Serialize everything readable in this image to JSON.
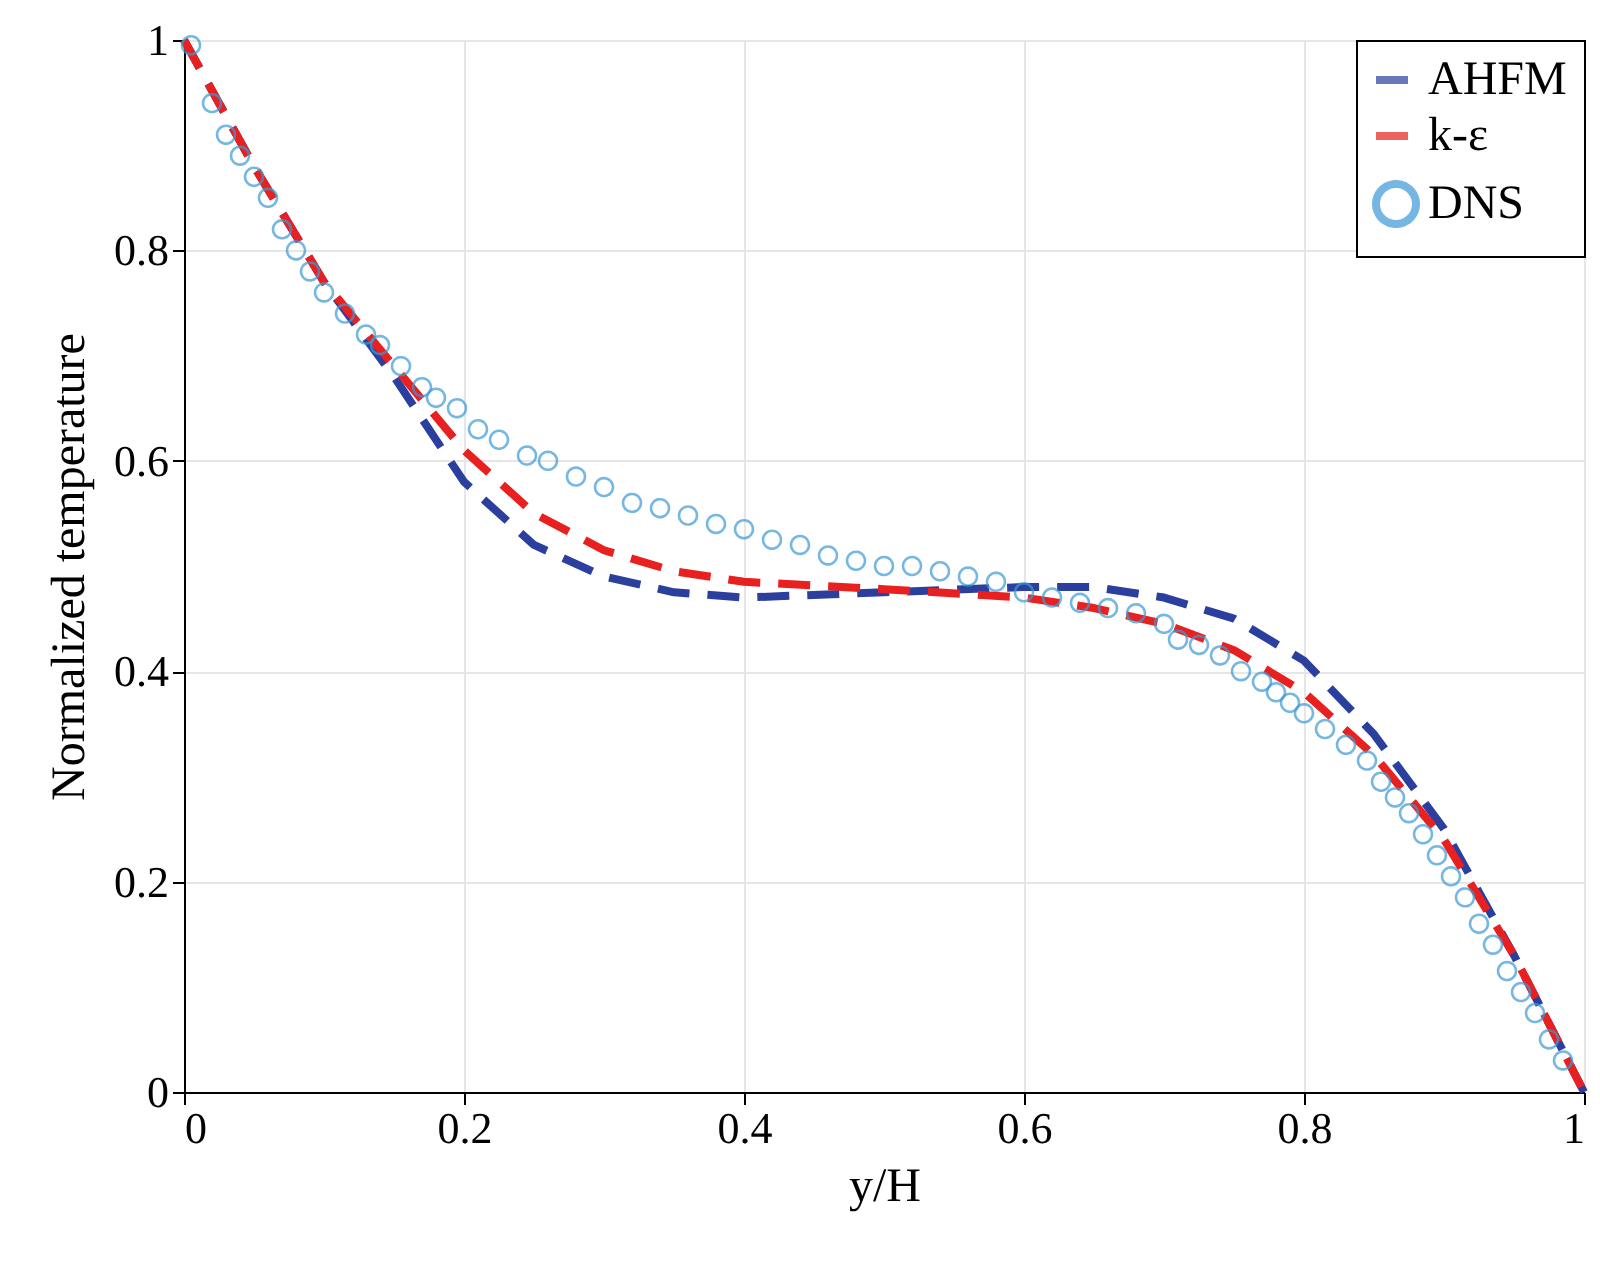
{
  "chart_data": {
    "type": "line",
    "xlabel": "y/H",
    "ylabel": "Normalized temperature",
    "xlim": [
      0,
      1
    ],
    "ylim": [
      0,
      1
    ],
    "xticks": [
      0,
      0.2,
      0.4,
      0.6,
      0.8,
      1
    ],
    "yticks": [
      0,
      0.2,
      0.4,
      0.6,
      0.8,
      1
    ],
    "grid": true,
    "legend": "top right",
    "series": [
      {
        "name": "AHFM",
        "type": "line",
        "line_style": "dashed",
        "marker": "none",
        "color": "#2b3f9e",
        "x": [
          0,
          0.05,
          0.1,
          0.15,
          0.2,
          0.25,
          0.3,
          0.35,
          0.4,
          0.5,
          0.6,
          0.65,
          0.7,
          0.75,
          0.8,
          0.85,
          0.9,
          0.95,
          1
        ],
        "values": [
          1,
          0.88,
          0.77,
          0.68,
          0.58,
          0.52,
          0.49,
          0.475,
          0.47,
          0.475,
          0.48,
          0.48,
          0.47,
          0.45,
          0.41,
          0.34,
          0.25,
          0.13,
          0
        ]
      },
      {
        "name": "k-ε",
        "type": "line",
        "line_style": "dashed",
        "marker": "none",
        "color": "#e8201f",
        "x": [
          0,
          0.05,
          0.1,
          0.15,
          0.2,
          0.25,
          0.3,
          0.35,
          0.4,
          0.5,
          0.6,
          0.65,
          0.7,
          0.75,
          0.8,
          0.85,
          0.9,
          0.95,
          1
        ],
        "values": [
          1,
          0.88,
          0.77,
          0.69,
          0.61,
          0.55,
          0.515,
          0.495,
          0.485,
          0.478,
          0.47,
          0.46,
          0.445,
          0.42,
          0.38,
          0.32,
          0.24,
          0.13,
          0
        ]
      },
      {
        "name": "DNS",
        "type": "scatter",
        "marker": "circle",
        "color": "#3c9ad6",
        "x": [
          0.005,
          0.02,
          0.03,
          0.04,
          0.05,
          0.06,
          0.07,
          0.08,
          0.09,
          0.1,
          0.115,
          0.13,
          0.14,
          0.155,
          0.17,
          0.18,
          0.195,
          0.21,
          0.225,
          0.245,
          0.26,
          0.28,
          0.3,
          0.32,
          0.34,
          0.36,
          0.38,
          0.4,
          0.42,
          0.44,
          0.46,
          0.48,
          0.5,
          0.52,
          0.54,
          0.56,
          0.58,
          0.6,
          0.62,
          0.64,
          0.66,
          0.68,
          0.7,
          0.71,
          0.725,
          0.74,
          0.755,
          0.77,
          0.78,
          0.79,
          0.8,
          0.815,
          0.83,
          0.845,
          0.855,
          0.865,
          0.875,
          0.885,
          0.895,
          0.905,
          0.915,
          0.925,
          0.935,
          0.945,
          0.955,
          0.965,
          0.975,
          0.985
        ],
        "values": [
          0.995,
          0.94,
          0.91,
          0.89,
          0.87,
          0.85,
          0.82,
          0.8,
          0.78,
          0.76,
          0.74,
          0.72,
          0.71,
          0.69,
          0.67,
          0.66,
          0.65,
          0.63,
          0.62,
          0.605,
          0.6,
          0.585,
          0.575,
          0.56,
          0.555,
          0.548,
          0.54,
          0.535,
          0.525,
          0.52,
          0.51,
          0.505,
          0.5,
          0.5,
          0.495,
          0.49,
          0.485,
          0.475,
          0.47,
          0.465,
          0.46,
          0.455,
          0.445,
          0.43,
          0.425,
          0.415,
          0.4,
          0.39,
          0.38,
          0.37,
          0.36,
          0.345,
          0.33,
          0.315,
          0.295,
          0.28,
          0.265,
          0.245,
          0.225,
          0.205,
          0.185,
          0.16,
          0.14,
          0.115,
          0.095,
          0.075,
          0.05,
          0.03
        ]
      }
    ]
  }
}
